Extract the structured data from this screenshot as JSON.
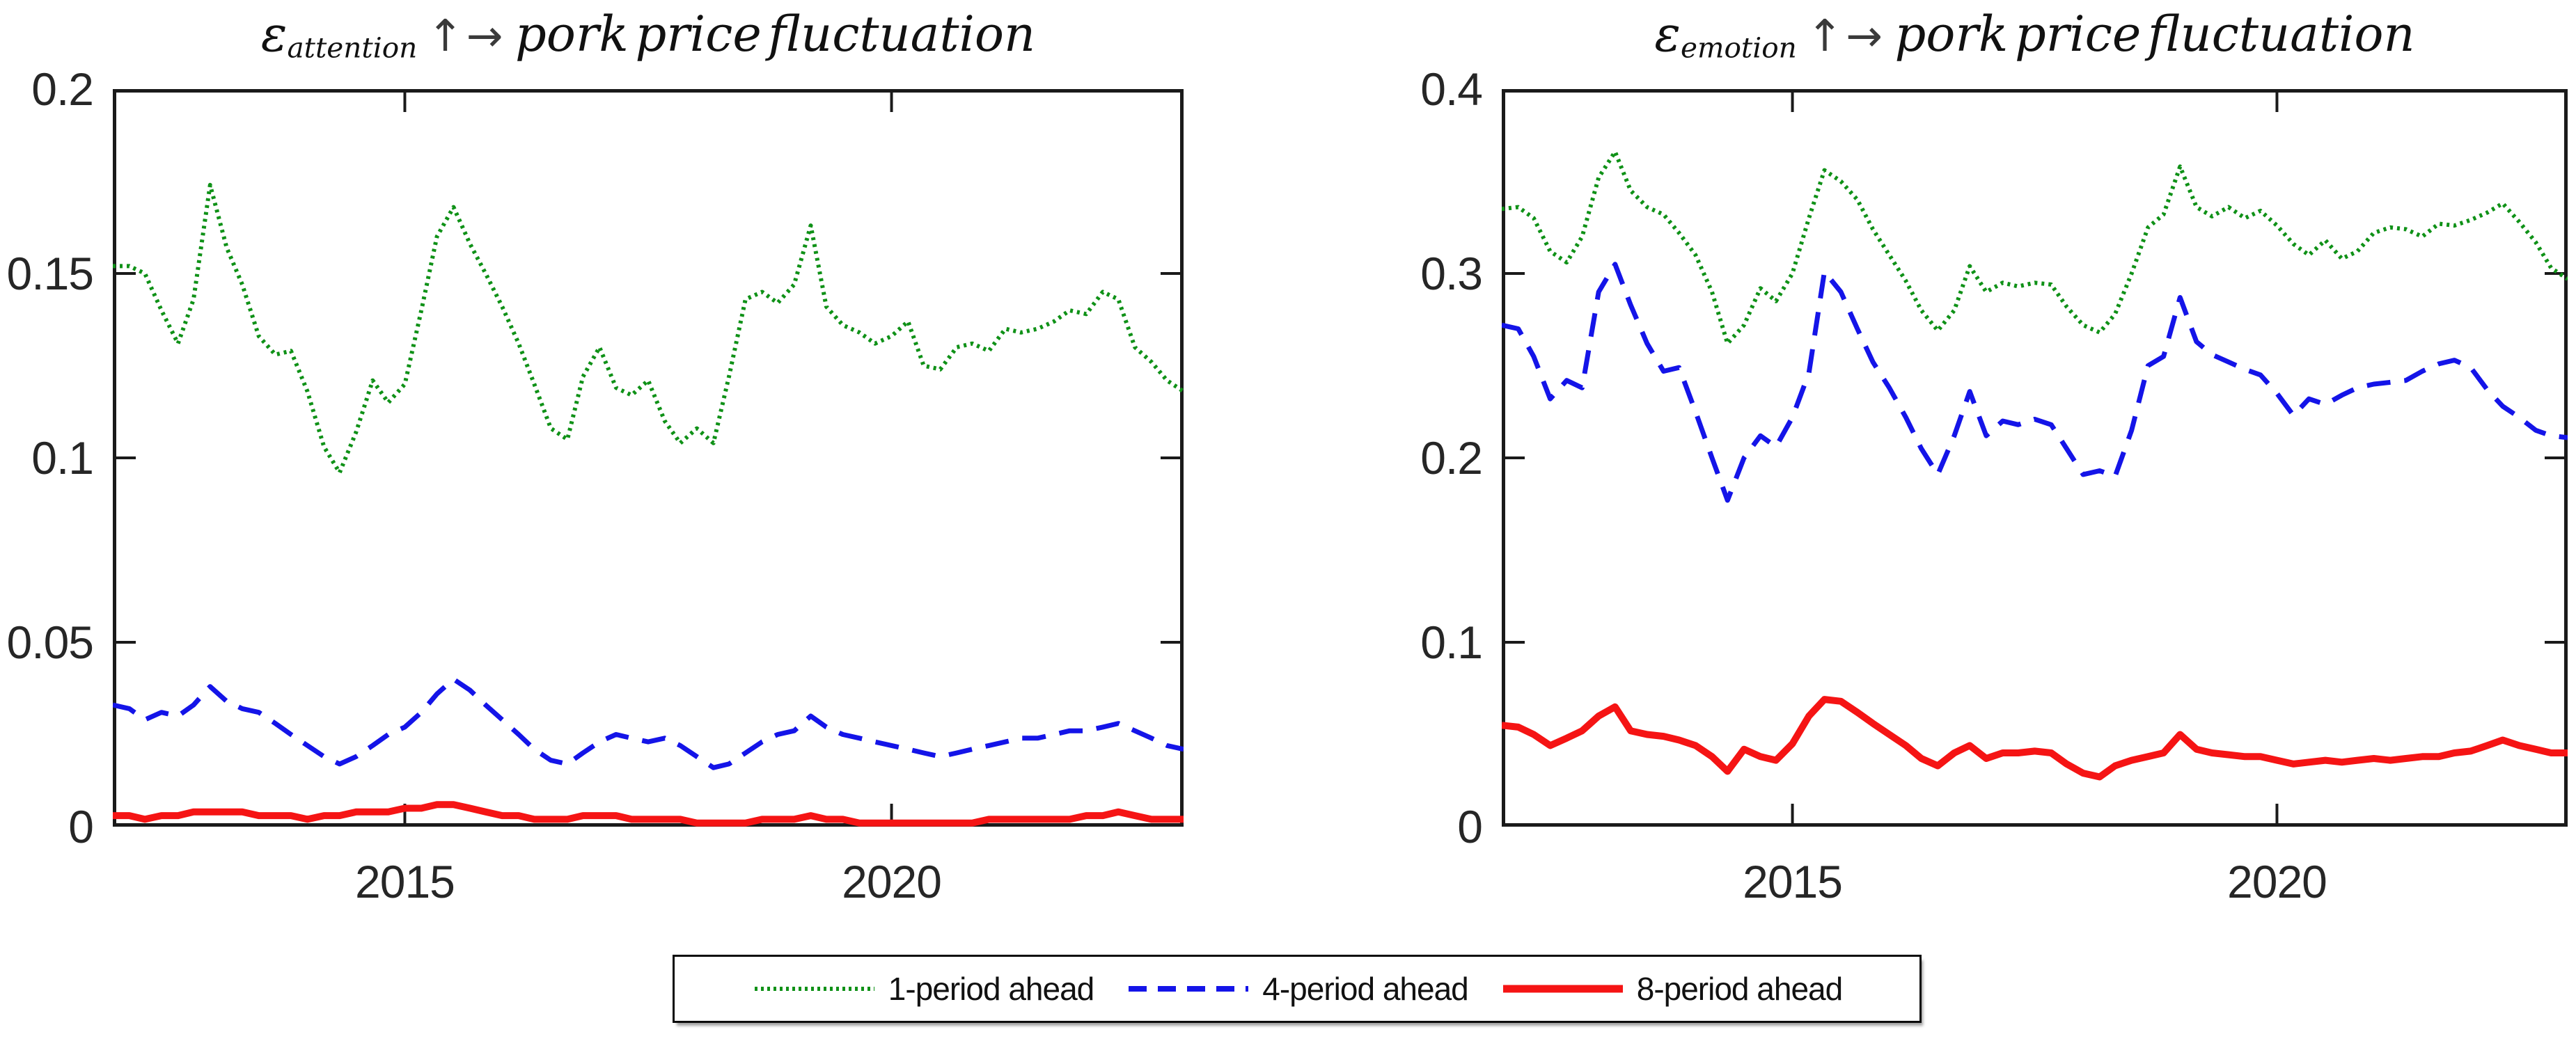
{
  "figure": {
    "background": "#ffffff"
  },
  "colors": {
    "axis": "#1a1a1a",
    "tick_label": "#262626",
    "title": "#111111",
    "legend_border": "#0a0a0a",
    "series_green": "#0f9117",
    "series_blue": "#1414e8",
    "series_red": "#f51414"
  },
  "legend": {
    "items": [
      {
        "label": "1-period ahead",
        "style": "dotted",
        "color": "#0f9117"
      },
      {
        "label": "4-period ahead",
        "style": "dashed",
        "color": "#1414e8"
      },
      {
        "label": "8-period ahead",
        "style": "solid",
        "color": "#f51414"
      }
    ]
  },
  "chart_data": [
    {
      "type": "line",
      "title": {
        "epsilon": "ε",
        "subscript": "attention",
        "arrow_up": "↑",
        "arrow_right": "→",
        "text": "pork price fluctuation"
      },
      "xlabel": "",
      "ylabel": "",
      "xlim": [
        2012,
        2023
      ],
      "ylim": [
        0,
        0.2
      ],
      "grid": false,
      "yticks": {
        "values": [
          0,
          0.05,
          0.1,
          0.15,
          0.2
        ],
        "labels": [
          "0",
          "0.05",
          "0.1",
          "0.15",
          "0.2"
        ]
      },
      "xticks": {
        "values": [
          2015,
          2020
        ],
        "labels": [
          "2015",
          "2020"
        ]
      },
      "x": [
        2012,
        2012.17,
        2012.33,
        2012.5,
        2012.67,
        2012.83,
        2013,
        2013.17,
        2013.33,
        2013.5,
        2013.67,
        2013.83,
        2014,
        2014.17,
        2014.33,
        2014.5,
        2014.67,
        2014.83,
        2015,
        2015.17,
        2015.33,
        2015.5,
        2015.67,
        2015.83,
        2016,
        2016.17,
        2016.33,
        2016.5,
        2016.67,
        2016.83,
        2017,
        2017.17,
        2017.33,
        2017.5,
        2017.67,
        2017.83,
        2018,
        2018.17,
        2018.33,
        2018.5,
        2018.67,
        2018.83,
        2019,
        2019.17,
        2019.33,
        2019.5,
        2019.67,
        2019.83,
        2020,
        2020.17,
        2020.33,
        2020.5,
        2020.67,
        2020.83,
        2021,
        2021.17,
        2021.33,
        2021.5,
        2021.67,
        2021.83,
        2022,
        2022.17,
        2022.33,
        2022.5,
        2022.67,
        2022.83,
        2023
      ],
      "series": [
        {
          "name": "1-period ahead",
          "style": "dotted",
          "color": "#0f9117",
          "values": [
            0.152,
            0.152,
            0.15,
            0.14,
            0.131,
            0.143,
            0.174,
            0.157,
            0.147,
            0.133,
            0.128,
            0.129,
            0.118,
            0.103,
            0.096,
            0.107,
            0.121,
            0.115,
            0.12,
            0.14,
            0.16,
            0.168,
            0.158,
            0.15,
            0.141,
            0.131,
            0.12,
            0.108,
            0.105,
            0.122,
            0.13,
            0.119,
            0.117,
            0.121,
            0.11,
            0.104,
            0.108,
            0.104,
            0.122,
            0.143,
            0.145,
            0.142,
            0.147,
            0.163,
            0.141,
            0.136,
            0.134,
            0.131,
            0.133,
            0.137,
            0.125,
            0.124,
            0.13,
            0.131,
            0.129,
            0.135,
            0.134,
            0.135,
            0.137,
            0.14,
            0.139,
            0.145,
            0.143,
            0.13,
            0.126,
            0.121,
            0.118
          ]
        },
        {
          "name": "4-period ahead",
          "style": "dashed",
          "color": "#1414e8",
          "values": [
            0.033,
            0.032,
            0.029,
            0.031,
            0.03,
            0.033,
            0.038,
            0.034,
            0.032,
            0.031,
            0.028,
            0.025,
            0.022,
            0.019,
            0.017,
            0.019,
            0.022,
            0.025,
            0.027,
            0.031,
            0.036,
            0.04,
            0.037,
            0.033,
            0.029,
            0.025,
            0.021,
            0.018,
            0.017,
            0.02,
            0.023,
            0.025,
            0.024,
            0.023,
            0.024,
            0.022,
            0.019,
            0.016,
            0.017,
            0.02,
            0.023,
            0.025,
            0.026,
            0.03,
            0.027,
            0.025,
            0.024,
            0.023,
            0.022,
            0.021,
            0.02,
            0.019,
            0.02,
            0.021,
            0.022,
            0.023,
            0.024,
            0.024,
            0.025,
            0.026,
            0.026,
            0.027,
            0.028,
            0.026,
            0.024,
            0.022,
            0.021
          ]
        },
        {
          "name": "8-period ahead",
          "style": "solid",
          "color": "#f51414",
          "values": [
            0.003,
            0.003,
            0.002,
            0.003,
            0.003,
            0.004,
            0.004,
            0.004,
            0.004,
            0.003,
            0.003,
            0.003,
            0.002,
            0.003,
            0.003,
            0.004,
            0.004,
            0.004,
            0.005,
            0.005,
            0.006,
            0.006,
            0.005,
            0.004,
            0.003,
            0.003,
            0.002,
            0.002,
            0.002,
            0.003,
            0.003,
            0.003,
            0.002,
            0.002,
            0.002,
            0.002,
            0.001,
            0.001,
            0.001,
            0.001,
            0.002,
            0.002,
            0.002,
            0.003,
            0.002,
            0.002,
            0.001,
            0.001,
            0.001,
            0.001,
            0.001,
            0.001,
            0.001,
            0.001,
            0.002,
            0.002,
            0.002,
            0.002,
            0.002,
            0.002,
            0.003,
            0.003,
            0.004,
            0.003,
            0.002,
            0.002,
            0.002
          ]
        }
      ]
    },
    {
      "type": "line",
      "title": {
        "epsilon": "ε",
        "subscript": "emotion",
        "arrow_up": "↑",
        "arrow_right": "→",
        "text": "pork price fluctuation"
      },
      "xlabel": "",
      "ylabel": "",
      "xlim": [
        2012,
        2023
      ],
      "ylim": [
        0,
        0.4
      ],
      "grid": false,
      "yticks": {
        "values": [
          0,
          0.1,
          0.2,
          0.3,
          0.4
        ],
        "labels": [
          "0",
          "0.1",
          "0.2",
          "0.3",
          "0.4"
        ]
      },
      "xticks": {
        "values": [
          2015,
          2020
        ],
        "labels": [
          "2015",
          "2020"
        ]
      },
      "x": [
        2012,
        2012.17,
        2012.33,
        2012.5,
        2012.67,
        2012.83,
        2013,
        2013.17,
        2013.33,
        2013.5,
        2013.67,
        2013.83,
        2014,
        2014.17,
        2014.33,
        2014.5,
        2014.67,
        2014.83,
        2015,
        2015.17,
        2015.33,
        2015.5,
        2015.67,
        2015.83,
        2016,
        2016.17,
        2016.33,
        2016.5,
        2016.67,
        2016.83,
        2017,
        2017.17,
        2017.33,
        2017.5,
        2017.67,
        2017.83,
        2018,
        2018.17,
        2018.33,
        2018.5,
        2018.67,
        2018.83,
        2019,
        2019.17,
        2019.33,
        2019.5,
        2019.67,
        2019.83,
        2020,
        2020.17,
        2020.33,
        2020.5,
        2020.67,
        2020.83,
        2021,
        2021.17,
        2021.33,
        2021.5,
        2021.67,
        2021.83,
        2022,
        2022.17,
        2022.33,
        2022.5,
        2022.67,
        2022.83,
        2023
      ],
      "series": [
        {
          "name": "1-period ahead",
          "style": "dotted",
          "color": "#0f9117",
          "values": [
            0.335,
            0.336,
            0.33,
            0.312,
            0.306,
            0.32,
            0.352,
            0.366,
            0.345,
            0.336,
            0.332,
            0.322,
            0.31,
            0.29,
            0.262,
            0.272,
            0.292,
            0.285,
            0.3,
            0.33,
            0.356,
            0.35,
            0.34,
            0.324,
            0.31,
            0.296,
            0.28,
            0.269,
            0.28,
            0.304,
            0.29,
            0.295,
            0.293,
            0.295,
            0.294,
            0.282,
            0.272,
            0.268,
            0.278,
            0.3,
            0.325,
            0.332,
            0.358,
            0.336,
            0.331,
            0.336,
            0.33,
            0.334,
            0.326,
            0.316,
            0.31,
            0.318,
            0.308,
            0.312,
            0.322,
            0.325,
            0.324,
            0.32,
            0.327,
            0.326,
            0.329,
            0.333,
            0.338,
            0.328,
            0.317,
            0.303,
            0.297
          ]
        },
        {
          "name": "4-period ahead",
          "style": "dashed",
          "color": "#1414e8",
          "values": [
            0.272,
            0.27,
            0.255,
            0.232,
            0.242,
            0.238,
            0.29,
            0.305,
            0.283,
            0.262,
            0.247,
            0.249,
            0.225,
            0.2,
            0.177,
            0.2,
            0.212,
            0.206,
            0.222,
            0.246,
            0.301,
            0.29,
            0.27,
            0.252,
            0.238,
            0.222,
            0.205,
            0.191,
            0.212,
            0.236,
            0.212,
            0.22,
            0.218,
            0.221,
            0.218,
            0.205,
            0.191,
            0.193,
            0.19,
            0.215,
            0.25,
            0.255,
            0.287,
            0.263,
            0.256,
            0.252,
            0.248,
            0.245,
            0.235,
            0.223,
            0.232,
            0.229,
            0.234,
            0.238,
            0.24,
            0.241,
            0.242,
            0.247,
            0.251,
            0.253,
            0.249,
            0.237,
            0.228,
            0.222,
            0.215,
            0.212,
            0.211
          ]
        },
        {
          "name": "8-period ahead",
          "style": "solid",
          "color": "#f51414",
          "values": [
            0.055,
            0.054,
            0.05,
            0.044,
            0.048,
            0.052,
            0.06,
            0.065,
            0.052,
            0.05,
            0.049,
            0.047,
            0.044,
            0.038,
            0.03,
            0.042,
            0.038,
            0.036,
            0.045,
            0.06,
            0.069,
            0.068,
            0.062,
            0.056,
            0.05,
            0.044,
            0.037,
            0.033,
            0.04,
            0.044,
            0.037,
            0.04,
            0.04,
            0.041,
            0.04,
            0.034,
            0.029,
            0.027,
            0.033,
            0.036,
            0.038,
            0.04,
            0.05,
            0.042,
            0.04,
            0.039,
            0.038,
            0.038,
            0.036,
            0.034,
            0.035,
            0.036,
            0.035,
            0.036,
            0.037,
            0.036,
            0.037,
            0.038,
            0.038,
            0.04,
            0.041,
            0.044,
            0.047,
            0.044,
            0.042,
            0.04,
            0.04
          ]
        }
      ]
    }
  ]
}
